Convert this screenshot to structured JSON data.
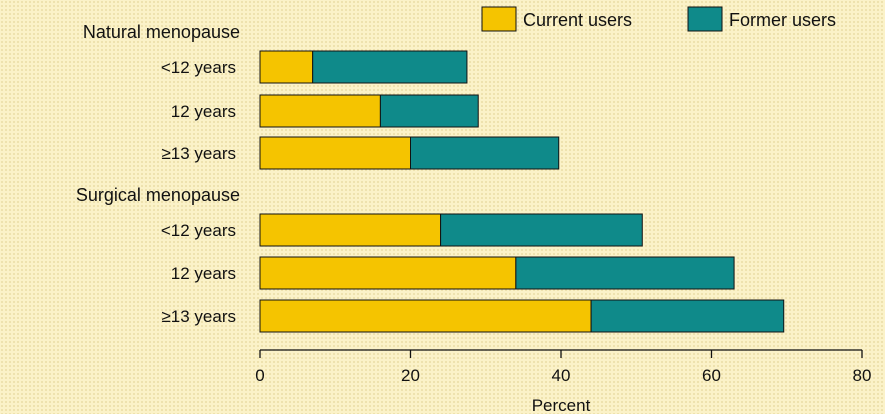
{
  "chart_data": {
    "type": "bar",
    "orientation": "horizontal",
    "stacked": true,
    "xlabel": "Percent",
    "xlim": [
      0,
      80
    ],
    "xticks": [
      0,
      20,
      40,
      60,
      80
    ],
    "grid": false,
    "legend_position": "top-right",
    "groups": [
      {
        "label": "Natural menopause",
        "categories": [
          "<12 years",
          "12 years",
          "≥13 years"
        ],
        "series": [
          {
            "name": "Current users",
            "color": "#f5c400",
            "values": [
              7,
              16,
              20
            ]
          },
          {
            "name": "Former users",
            "color": "#0f8a8a",
            "values": [
              20.5,
              13,
              19.7
            ]
          }
        ]
      },
      {
        "label": "Surgical menopause",
        "categories": [
          "<12 years",
          "12 years",
          "≥13 years"
        ],
        "series": [
          {
            "name": "Current users",
            "color": "#f5c400",
            "values": [
              24,
              34,
              44
            ]
          },
          {
            "name": "Former users",
            "color": "#0f8a8a",
            "values": [
              26.8,
              29,
              25.6
            ]
          }
        ]
      }
    ]
  }
}
